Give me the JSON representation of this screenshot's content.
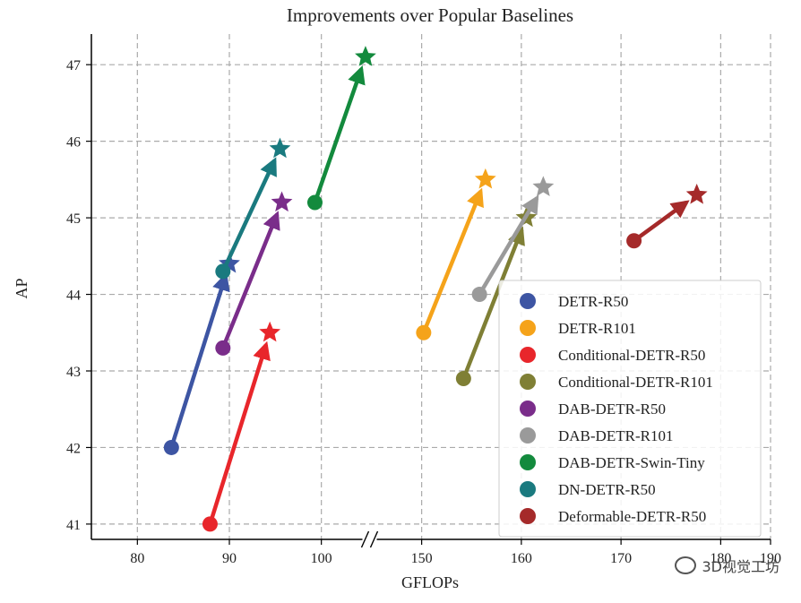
{
  "chart_data": {
    "type": "scatter-arrows",
    "title": "Improvements over Popular Baselines",
    "xlabel": "GFLOPs",
    "ylabel": "AP",
    "x_segments": [
      [
        75,
        105
      ],
      [
        145,
        185
      ]
    ],
    "xticks": [
      80,
      90,
      100,
      150,
      160,
      170,
      180,
      190
    ],
    "xtick_labels": [
      "80",
      "90",
      "100",
      "150",
      "160",
      "170",
      "180",
      "190"
    ],
    "ylim": [
      40.8,
      47.4
    ],
    "yticks": [
      41,
      42,
      43,
      44,
      45,
      46,
      47
    ],
    "ytick_labels": [
      "41",
      "42",
      "43",
      "44",
      "45",
      "46",
      "47"
    ],
    "grid": true,
    "legend_position": "lower-right",
    "series": [
      {
        "name": "DETR-R50",
        "color": "#3d55a3",
        "start": [
          83.7,
          42.0
        ],
        "end": [
          90.0,
          44.4
        ]
      },
      {
        "name": "DETR-R101",
        "color": "#f5a31a",
        "start": [
          150.2,
          43.5
        ],
        "end": [
          156.4,
          45.5
        ]
      },
      {
        "name": "Conditional-DETR-R50",
        "color": "#e8262b",
        "start": [
          87.9,
          41.0
        ],
        "end": [
          94.4,
          43.5
        ]
      },
      {
        "name": "Conditional-DETR-R101",
        "color": "#7f7f35",
        "start": [
          154.2,
          42.9
        ],
        "end": [
          160.5,
          45.0
        ]
      },
      {
        "name": "DAB-DETR-R50",
        "color": "#7a2d8a",
        "start": [
          89.3,
          43.3
        ],
        "end": [
          95.7,
          45.2
        ]
      },
      {
        "name": "DAB-DETR-R101",
        "color": "#9a9a9a",
        "start": [
          155.8,
          44.0
        ],
        "end": [
          162.2,
          45.4
        ]
      },
      {
        "name": "DAB-DETR-Swin-Tiny",
        "color": "#138a3d",
        "start": [
          99.3,
          45.2
        ],
        "end": [
          104.8,
          47.1
        ]
      },
      {
        "name": "DN-DETR-R50",
        "color": "#1a7a7f",
        "start": [
          89.3,
          44.3
        ],
        "end": [
          95.5,
          45.9
        ]
      },
      {
        "name": "Deformable-DETR-R50",
        "color": "#a52a2a",
        "start": [
          171.3,
          44.7
        ],
        "end": [
          177.6,
          45.3
        ]
      }
    ]
  },
  "watermark": {
    "text": "3D视觉工坊"
  }
}
